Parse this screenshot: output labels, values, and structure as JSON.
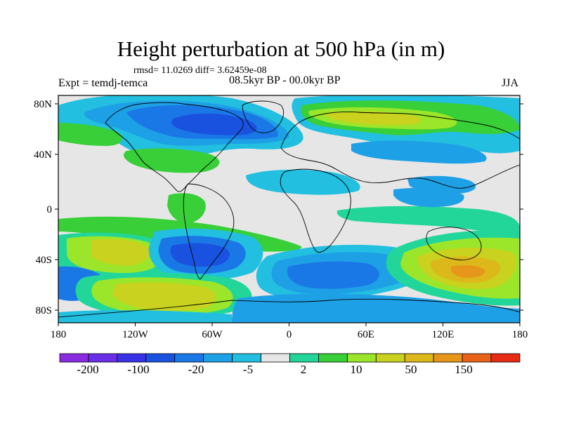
{
  "figure": {
    "title": "Height perturbation at 500 hPa (in m)",
    "stats": "rmsd= 11.0269 diff= 3.62459e-08",
    "experiment": "Expt = temdj-temca",
    "period": "08.5kyr BP - 00.0kyr BP",
    "season": "JJA"
  },
  "axes": {
    "lat_labels": [
      "80N",
      "40N",
      "0",
      "40S",
      "80S"
    ],
    "lon_labels": [
      "180",
      "120W",
      "60W",
      "0",
      "60E",
      "120E",
      "180"
    ]
  },
  "colorbar": {
    "colors": [
      "#8a2be2",
      "#6a2ee8",
      "#3a32e6",
      "#1a52e0",
      "#1a78e6",
      "#1ea0e6",
      "#22bfe0",
      "#e6e6e6",
      "#22d69a",
      "#38cf38",
      "#9be62a",
      "#c9d21e",
      "#ddb81a",
      "#e6961a",
      "#e8621a",
      "#e62a14"
    ],
    "labels": [
      "-200",
      "-100",
      "-20",
      "-5",
      "2",
      "10",
      "50",
      "150"
    ]
  },
  "map": {
    "title": "Height perturbation at 500 hPa (in m)",
    "lon_range": [
      -180,
      180
    ],
    "lat_range": [
      -90,
      90
    ],
    "fill_colors": {
      "neutral": "#e6e6e6",
      "blue_deep": "#1a52e0",
      "blue": "#1a78e6",
      "blue_light": "#1ea0e6",
      "cyan": "#22bfe0",
      "teal": "#22d69a",
      "green": "#38cf38",
      "yellow_green": "#9be62a",
      "yellow": "#c9d21e",
      "orange": "#ddb81a"
    }
  }
}
